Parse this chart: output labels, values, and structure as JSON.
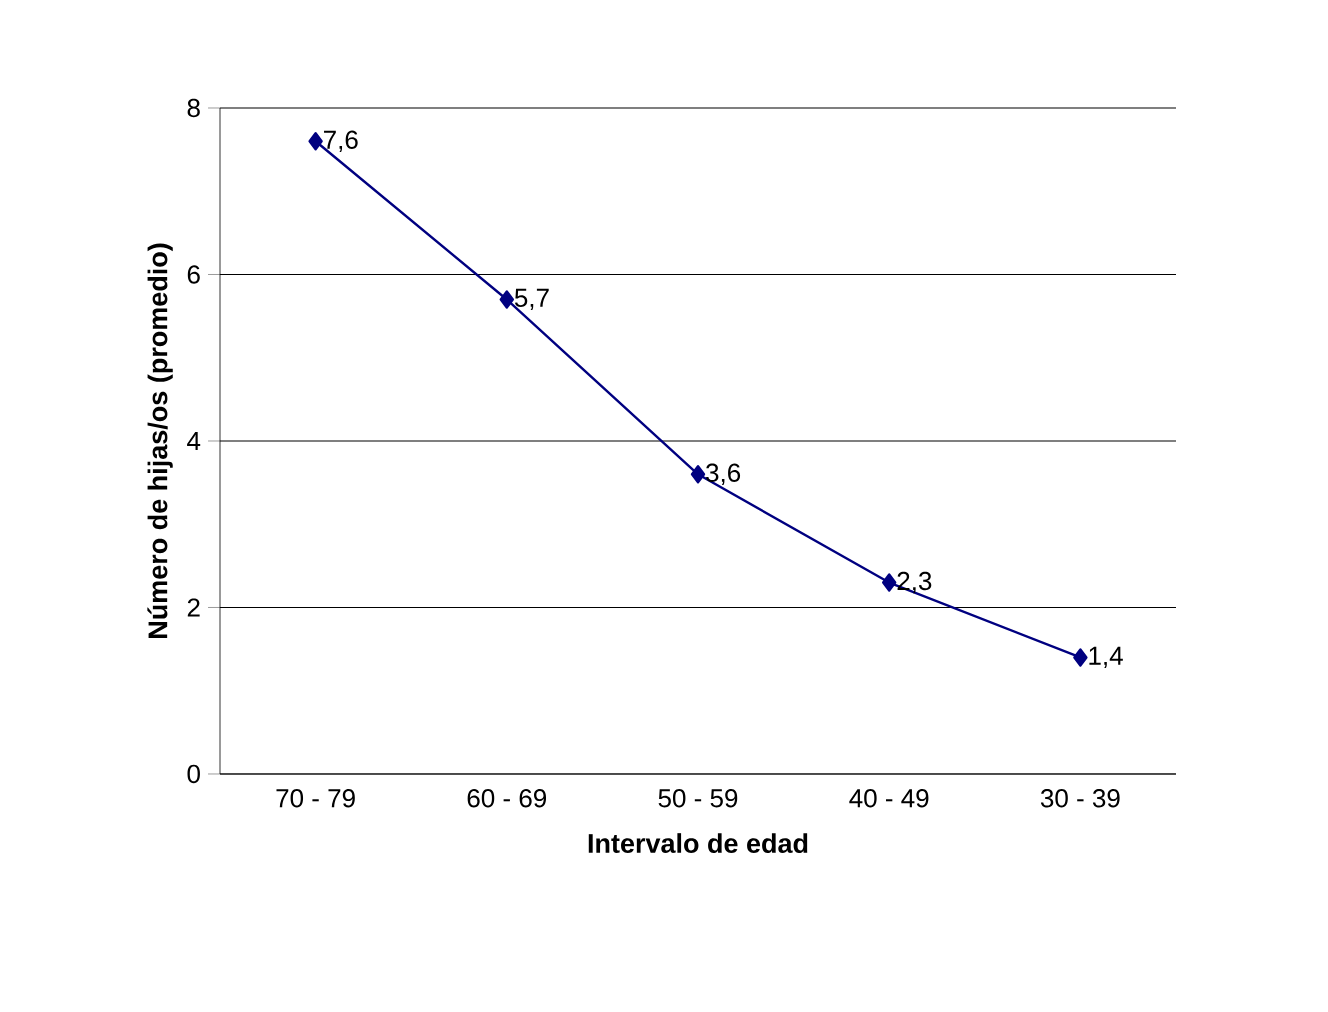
{
  "chart_data": {
    "type": "line",
    "xlabel": "Intervalo de edad",
    "ylabel": "Número de hijas/os (promedio)",
    "categories": [
      "70 - 79",
      "60 - 69",
      "50 - 59",
      "40 - 49",
      "30 - 39"
    ],
    "values": [
      7.6,
      5.7,
      3.6,
      2.3,
      1.4
    ],
    "value_labels": [
      "7,6",
      "5,7",
      "3,6",
      "2,3",
      "1,4"
    ],
    "color": "#000080",
    "marker": "diamond",
    "line_style": "solid",
    "ylim": [
      0,
      8
    ],
    "yticks": [
      0,
      2,
      4,
      6,
      8
    ],
    "grid": "y"
  }
}
